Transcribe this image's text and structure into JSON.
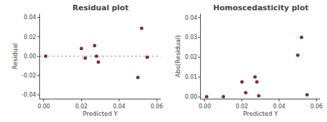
{
  "chart_data": [
    {
      "type": "scatter",
      "title": "Residual plot",
      "xlabel": "Predicted Y",
      "ylabel": "Residual",
      "x": [
        0.001,
        0.02,
        0.022,
        0.027,
        0.028,
        0.029,
        0.05,
        0.052,
        0.055
      ],
      "values": [
        0.0,
        0.008,
        -0.002,
        0.011,
        0.0,
        -0.006,
        -0.022,
        0.029,
        -0.001
      ],
      "color": "#7B3030",
      "xlim": [
        -0.002,
        0.062
      ],
      "xticks": [
        {
          "value": 0.0,
          "label": "0.00"
        },
        0.02,
        0.04,
        0.06
      ],
      "ylim": [
        -0.044,
        0.044
      ],
      "yticks": [
        -0.04,
        -0.02,
        {
          "value": 0.0,
          "label": "0.00"
        },
        0.02,
        0.04
      ],
      "grid": false,
      "hlines": [
        {
          "y": 0,
          "color": "#999999",
          "line_style": "dotted"
        }
      ]
    },
    {
      "type": "scatter",
      "title": "Homoscedasticity plot",
      "xlabel": "Predicted Y",
      "ylabel": "Abs(Residual)",
      "x": [
        0.001,
        0.01,
        0.02,
        0.022,
        0.027,
        0.028,
        0.029,
        0.05,
        0.052,
        0.055
      ],
      "values": [
        0.0,
        0.0,
        0.0075,
        0.002,
        0.01,
        0.0075,
        0.0005,
        0.021,
        0.03,
        0.001
      ],
      "color": "#7B3030",
      "xlim": [
        -0.002,
        0.062
      ],
      "xticks": [
        {
          "value": 0.0,
          "label": "0.00"
        },
        0.02,
        0.04,
        0.06
      ],
      "ylim": [
        -0.001,
        0.042
      ],
      "yticks": [
        {
          "value": 0.0,
          "label": "0.00"
        },
        0.01,
        0.02,
        0.03,
        0.04
      ],
      "grid": false
    }
  ]
}
